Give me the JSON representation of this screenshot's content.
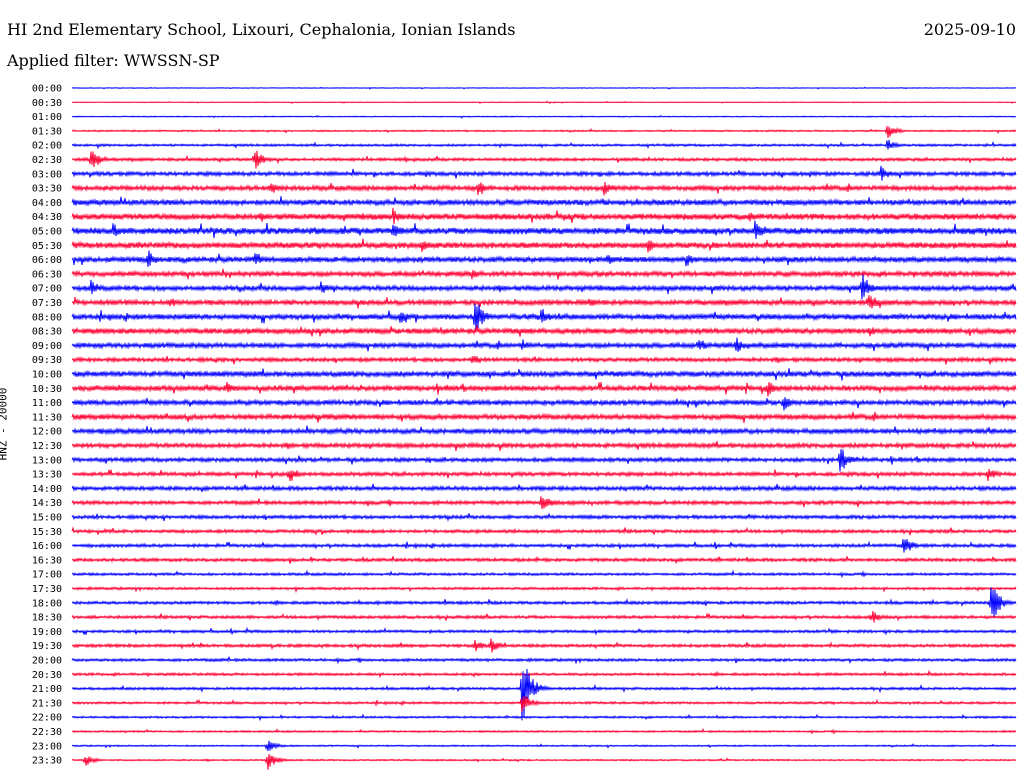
{
  "header": {
    "title": "HI 2nd Elementary School, Lixouri, Cephalonia, Ionian Islands",
    "date": "2025-09-10",
    "filter": "Applied filter: WWSSN-SP"
  },
  "chart_data": {
    "type": "line",
    "ylabel": "HNZ - 20000",
    "line_colors": [
      "#0000ff",
      "#ff0033"
    ],
    "rows": [
      "00:00",
      "00:30",
      "01:00",
      "01:30",
      "02:00",
      "02:30",
      "03:00",
      "03:30",
      "04:00",
      "04:30",
      "05:00",
      "05:30",
      "06:00",
      "06:30",
      "07:00",
      "07:30",
      "08:00",
      "08:30",
      "09:00",
      "09:30",
      "10:00",
      "10:30",
      "11:00",
      "11:30",
      "12:00",
      "12:30",
      "13:00",
      "13:30",
      "14:00",
      "14:30",
      "15:00",
      "15:30",
      "16:00",
      "16:30",
      "17:00",
      "17:30",
      "18:00",
      "18:30",
      "19:00",
      "19:30",
      "20:00",
      "20:30",
      "21:00",
      "21:30",
      "22:00",
      "22:30",
      "23:00",
      "23:30"
    ],
    "noise_level": [
      0.3,
      0.3,
      0.4,
      0.6,
      0.9,
      1.2,
      1.6,
      1.9,
      2.2,
      2.5,
      2.7,
      2.4,
      2.2,
      2.0,
      2.0,
      2.0,
      2.2,
      2.2,
      2.0,
      1.6,
      2.2,
      2.1,
      2.0,
      2.1,
      2.0,
      1.8,
      1.6,
      1.5,
      1.6,
      1.5,
      1.4,
      1.3,
      1.3,
      1.3,
      1.0,
      1.0,
      1.2,
      1.2,
      1.1,
      1.2,
      1.1,
      1.0,
      1.0,
      0.9,
      0.8,
      0.7,
      0.6,
      0.6
    ],
    "events": [
      {
        "row": 3,
        "minute": 25.9,
        "amplitude": 9
      },
      {
        "row": 4,
        "minute": 25.9,
        "amplitude": 7
      },
      {
        "row": 5,
        "minute": 0.6,
        "amplitude": 14
      },
      {
        "row": 5,
        "minute": 5.8,
        "amplitude": 12
      },
      {
        "row": 6,
        "minute": 25.7,
        "amplitude": 9
      },
      {
        "row": 7,
        "minute": 6.3,
        "amplitude": 8
      },
      {
        "row": 7,
        "minute": 12.9,
        "amplitude": 10
      },
      {
        "row": 7,
        "minute": 16.9,
        "amplitude": 9
      },
      {
        "row": 9,
        "minute": 10.2,
        "amplitude": 9
      },
      {
        "row": 9,
        "minute": 21.5,
        "amplitude": 7
      },
      {
        "row": 10,
        "minute": 1.3,
        "amplitude": 9
      },
      {
        "row": 10,
        "minute": 10.2,
        "amplitude": 10
      },
      {
        "row": 10,
        "minute": 21.7,
        "amplitude": 11
      },
      {
        "row": 11,
        "minute": 11.1,
        "amplitude": 8
      },
      {
        "row": 11,
        "minute": 18.3,
        "amplitude": 8
      },
      {
        "row": 12,
        "minute": 2.4,
        "amplitude": 11
      },
      {
        "row": 12,
        "minute": 5.8,
        "amplitude": 8
      },
      {
        "row": 12,
        "minute": 17.0,
        "amplitude": 7
      },
      {
        "row": 12,
        "minute": 19.5,
        "amplitude": 9
      },
      {
        "row": 13,
        "minute": 12.7,
        "amplitude": 8
      },
      {
        "row": 14,
        "minute": 0.6,
        "amplitude": 9
      },
      {
        "row": 14,
        "minute": 7.9,
        "amplitude": 8
      },
      {
        "row": 14,
        "minute": 25.1,
        "amplitude": 16
      },
      {
        "row": 15,
        "minute": 3.1,
        "amplitude": 7
      },
      {
        "row": 15,
        "minute": 16.4,
        "amplitude": 7
      },
      {
        "row": 15,
        "minute": 25.3,
        "amplitude": 14
      },
      {
        "row": 16,
        "minute": 10.4,
        "amplitude": 9
      },
      {
        "row": 16,
        "minute": 12.8,
        "amplitude": 22
      },
      {
        "row": 16,
        "minute": 14.9,
        "amplitude": 11
      },
      {
        "row": 17,
        "minute": 25.3,
        "amplitude": 7
      },
      {
        "row": 18,
        "minute": 14.3,
        "amplitude": 7
      },
      {
        "row": 18,
        "minute": 19.9,
        "amplitude": 9
      },
      {
        "row": 18,
        "minute": 21.1,
        "amplitude": 9
      },
      {
        "row": 19,
        "minute": 12.7,
        "amplitude": 7
      },
      {
        "row": 21,
        "minute": 4.9,
        "amplitude": 9
      },
      {
        "row": 21,
        "minute": 22.1,
        "amplitude": 9
      },
      {
        "row": 22,
        "minute": 22.6,
        "amplitude": 9
      },
      {
        "row": 26,
        "minute": 24.4,
        "amplitude": 16
      },
      {
        "row": 27,
        "minute": 6.9,
        "amplitude": 10
      },
      {
        "row": 27,
        "minute": 29.1,
        "amplitude": 8
      },
      {
        "row": 29,
        "minute": 14.9,
        "amplitude": 12
      },
      {
        "row": 32,
        "minute": 26.4,
        "amplitude": 13
      },
      {
        "row": 36,
        "minute": 29.2,
        "amplitude": 24
      },
      {
        "row": 37,
        "minute": 25.4,
        "amplitude": 8
      },
      {
        "row": 39,
        "minute": 12.8,
        "amplitude": 7
      },
      {
        "row": 39,
        "minute": 13.3,
        "amplitude": 9
      },
      {
        "row": 42,
        "minute": 14.3,
        "amplitude": 42
      },
      {
        "row": 43,
        "minute": 14.3,
        "amplitude": 12
      },
      {
        "row": 46,
        "minute": 6.2,
        "amplitude": 8
      },
      {
        "row": 47,
        "minute": 6.2,
        "amplitude": 12
      },
      {
        "row": 47,
        "minute": 0.4,
        "amplitude": 7
      }
    ]
  }
}
